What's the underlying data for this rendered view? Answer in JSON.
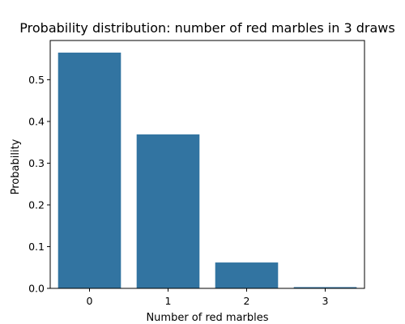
{
  "chart_data": {
    "type": "bar",
    "title": "Probability distribution: number of red marbles in 3 draws",
    "xlabel": "Number of red marbles",
    "ylabel": "Probability",
    "categories": [
      "0",
      "1",
      "2",
      "3"
    ],
    "values": [
      0.565,
      0.369,
      0.062,
      0.003
    ],
    "ylim": [
      0,
      0.594
    ],
    "yticks": [
      0.0,
      0.1,
      0.2,
      0.3,
      0.4,
      0.5
    ],
    "ytick_labels": [
      "0.0",
      "0.1",
      "0.2",
      "0.3",
      "0.4",
      "0.5"
    ],
    "bar_color": "#3274a1",
    "grid": false,
    "legend": "none"
  }
}
